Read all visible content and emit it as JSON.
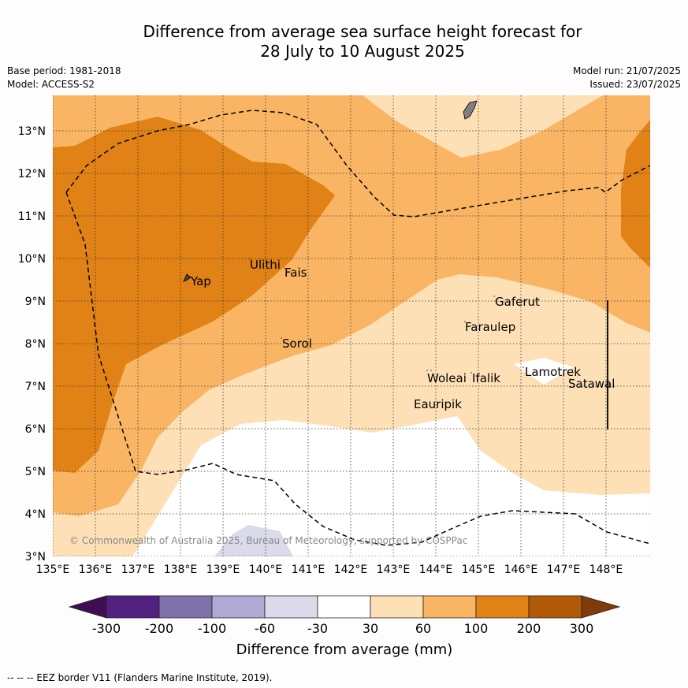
{
  "header": {
    "title_line1": "Difference from average sea surface height forecast for",
    "title_line2": "28 July to 10 August 2025",
    "base_period": "Base period: 1981-2018",
    "model": "Model: ACCESS-S2",
    "model_run": "Model run: 21/07/2025",
    "issued": "Issued: 23/07/2025"
  },
  "map": {
    "lon_ticks": [
      "135°E",
      "136°E",
      "137°E",
      "138°E",
      "139°E",
      "140°E",
      "141°E",
      "142°E",
      "143°E",
      "144°E",
      "145°E",
      "146°E",
      "147°E",
      "148°E"
    ],
    "lat_ticks": [
      "3°N",
      "4°N",
      "5°N",
      "6°N",
      "7°N",
      "8°N",
      "9°N",
      "10°N",
      "11°N",
      "12°N",
      "13°N"
    ],
    "places": [
      "Ulithi",
      "Fais",
      "Yap",
      "Gaferut",
      "Faraulep",
      "Sorol",
      "Lamotrek",
      "Woleai",
      "Ifalik",
      "Satawal",
      "Eauripik"
    ],
    "copyright": "© Commonwealth of Australia 2025, Bureau of Meteorology, supported by COSPPac"
  },
  "colorbar": {
    "labels": [
      "-300",
      "-200",
      "-100",
      "-60",
      "-30",
      "30",
      "60",
      "100",
      "200",
      "300"
    ],
    "colors": [
      "#3f0e52",
      "#52207f",
      "#7f72ae",
      "#b1a9d3",
      "#dadaea",
      "#ffffff",
      "#fde0b6",
      "#f9b563",
      "#e08215",
      "#b05a07",
      "#7f3b08"
    ],
    "title": "Difference from average (mm)"
  },
  "footer": {
    "eez_note": "--  --  -- EEZ border V11 (Flanders Marine Institute, 2019)."
  }
}
